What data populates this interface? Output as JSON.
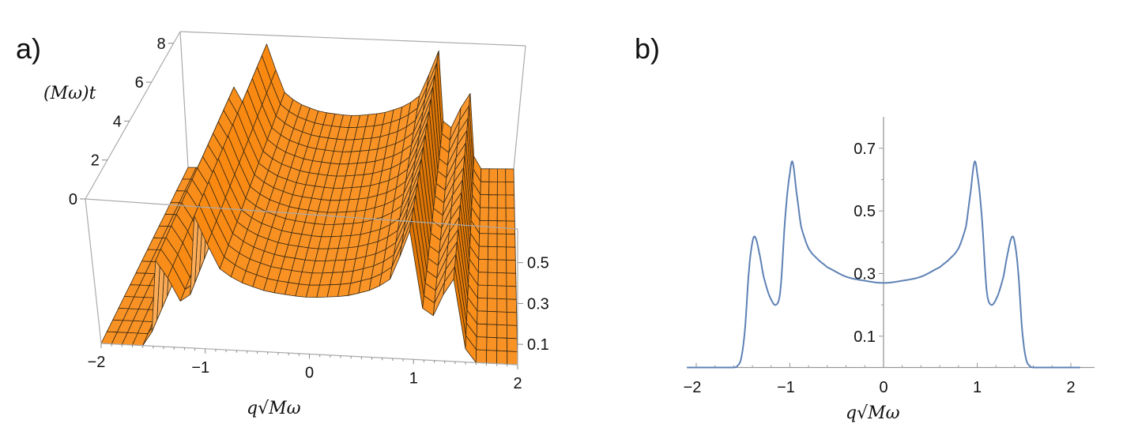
{
  "panel_labels": {
    "a": "a)",
    "b": "b)"
  },
  "chart_data": [
    {
      "type": "surface",
      "panel": "a)",
      "xlabel": "q√Mω",
      "ylabel": "(Mω)t",
      "xlim": [
        -2,
        2
      ],
      "tlim": [
        0,
        8.6
      ],
      "zlim": [
        0,
        0.665
      ],
      "xtick_labels": [
        "−2",
        "−1",
        "0",
        "1",
        "2"
      ],
      "ttick_labels": [
        "0",
        "2",
        "4",
        "6",
        "8"
      ],
      "ztick_labels": [
        "0.1",
        "0.3",
        "0.5"
      ],
      "surface_note": "time-independent profile equal to panel b curve",
      "color": "#f7941d",
      "mesh_color": "#3b2a12"
    },
    {
      "type": "line",
      "panel": "b)",
      "xlabel": "q√Mω",
      "ylabel": "",
      "xlim": [
        -2.1,
        2.1
      ],
      "ylim": [
        0,
        0.8
      ],
      "xtick_labels": [
        "−2",
        "−1",
        "0",
        "1",
        "2"
      ],
      "xticks": [
        -2,
        -1,
        0,
        1,
        2
      ],
      "ytick_labels": [
        "0.1",
        "0.3",
        "0.5",
        "0.7"
      ],
      "yticks": [
        0.1,
        0.3,
        0.5,
        0.7
      ],
      "color": "#5e81b5",
      "x": [
        -2,
        -1.8,
        -1.6,
        -1.56,
        -1.52,
        -1.48,
        -1.44,
        -1.4,
        -1.37,
        -1.33,
        -1.28,
        -1.22,
        -1.15,
        -1.1,
        -1.05,
        -1.0,
        -0.97,
        -0.93,
        -0.88,
        -0.8,
        -0.7,
        -0.6,
        -0.4,
        -0.2,
        0,
        0.2,
        0.4,
        0.6,
        0.7,
        0.8,
        0.88,
        0.93,
        0.97,
        1.0,
        1.05,
        1.1,
        1.15,
        1.22,
        1.28,
        1.33,
        1.37,
        1.4,
        1.44,
        1.48,
        1.52,
        1.56,
        1.6,
        1.8,
        2
      ],
      "y": [
        0,
        0,
        0,
        0.005,
        0.03,
        0.12,
        0.3,
        0.4,
        0.416,
        0.37,
        0.29,
        0.23,
        0.2,
        0.25,
        0.48,
        0.62,
        0.655,
        0.56,
        0.45,
        0.38,
        0.345,
        0.32,
        0.29,
        0.277,
        0.27,
        0.277,
        0.29,
        0.32,
        0.345,
        0.38,
        0.45,
        0.56,
        0.655,
        0.62,
        0.48,
        0.25,
        0.2,
        0.23,
        0.29,
        0.37,
        0.416,
        0.4,
        0.3,
        0.12,
        0.03,
        0.005,
        0,
        0,
        0
      ]
    }
  ]
}
